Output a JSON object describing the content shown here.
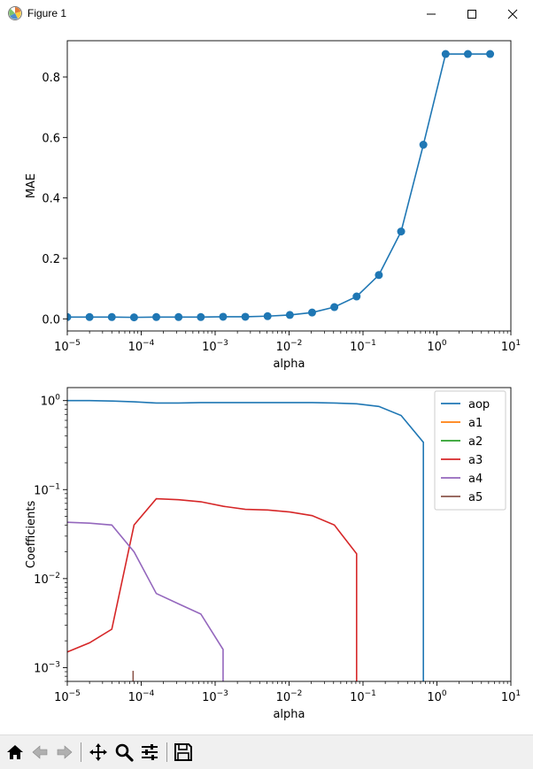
{
  "window": {
    "title": "Figure 1",
    "controls": [
      {
        "name": "minimize-button",
        "icon": "minimize-icon"
      },
      {
        "name": "maximize-button",
        "icon": "maximize-icon"
      },
      {
        "name": "close-button",
        "icon": "close-icon"
      }
    ]
  },
  "toolbar": {
    "tools": [
      {
        "name": "home-button",
        "icon": "home-icon"
      },
      {
        "name": "back-button",
        "icon": "back-arrow-icon"
      },
      {
        "name": "forward-button",
        "icon": "forward-arrow-icon"
      },
      {
        "name": "pan-button",
        "icon": "pan-icon"
      },
      {
        "name": "zoom-button",
        "icon": "zoom-icon"
      },
      {
        "name": "configure-subplots-button",
        "icon": "sliders-icon"
      },
      {
        "name": "save-button",
        "icon": "save-icon"
      }
    ]
  },
  "chart_data": [
    {
      "type": "line",
      "title": "",
      "xlabel": "alpha",
      "ylabel": "MAE",
      "xscale": "log",
      "xlim": [
        1e-05,
        10
      ],
      "ylim": [
        -0.04,
        0.92
      ],
      "x_ticks": [
        1e-05,
        0.0001,
        0.001,
        0.01,
        0.1,
        1,
        10
      ],
      "x_tick_labels": [
        [
          "10",
          "−5"
        ],
        [
          "10",
          "−4"
        ],
        [
          "10",
          "−3"
        ],
        [
          "10",
          "−2"
        ],
        [
          "10",
          "−1"
        ],
        [
          "10",
          "0"
        ],
        [
          "10",
          "1"
        ]
      ],
      "y_ticks": [
        0.0,
        0.2,
        0.4,
        0.6,
        0.8
      ],
      "y_tick_labels": [
        "0.0",
        "0.2",
        "0.4",
        "0.6",
        "0.8"
      ],
      "markers": true,
      "series": [
        {
          "color": "#1f77b4",
          "x": [
            1e-05,
            2e-05,
            4e-05,
            8e-05,
            0.00016,
            0.00032,
            0.00064,
            0.00128,
            0.00256,
            0.00512,
            0.01024,
            0.02048,
            0.04096,
            0.08192,
            0.16384,
            0.32768,
            0.65536,
            1.31072,
            2.62144,
            5.24288
          ],
          "y": [
            0.006,
            0.006,
            0.006,
            0.005,
            0.006,
            0.006,
            0.006,
            0.007,
            0.007,
            0.009,
            0.013,
            0.021,
            0.039,
            0.074,
            0.145,
            0.289,
            0.576,
            0.876,
            0.876,
            0.876
          ]
        }
      ]
    },
    {
      "type": "line",
      "title": "",
      "xlabel": "alpha",
      "ylabel": "Coefficients",
      "xscale": "log",
      "yscale": "log",
      "xlim": [
        1e-05,
        10
      ],
      "ylim": [
        0.0007,
        1.4
      ],
      "x_ticks": [
        1e-05,
        0.0001,
        0.001,
        0.01,
        0.1,
        1,
        10
      ],
      "x_tick_labels": [
        [
          "10",
          "−5"
        ],
        [
          "10",
          "−4"
        ],
        [
          "10",
          "−3"
        ],
        [
          "10",
          "−2"
        ],
        [
          "10",
          "−1"
        ],
        [
          "10",
          "0"
        ],
        [
          "10",
          "1"
        ]
      ],
      "y_ticks": [
        0.001,
        0.01,
        0.1,
        1
      ],
      "y_tick_labels": [
        [
          "10",
          "−3"
        ],
        [
          "10",
          "−2"
        ],
        [
          "10",
          "−1"
        ],
        [
          "10",
          "0"
        ]
      ],
      "legend_position": "upper right",
      "series": [
        {
          "name": "aop",
          "color": "#1f77b4",
          "x": [
            1e-05,
            2e-05,
            4e-05,
            8e-05,
            0.00016,
            0.00032,
            0.00064,
            0.00128,
            0.00256,
            0.00512,
            0.01024,
            0.02048,
            0.04096,
            0.08192,
            0.16384,
            0.32768,
            0.65536,
            0.65536
          ],
          "y": [
            1.0,
            1.0,
            0.99,
            0.97,
            0.94,
            0.94,
            0.95,
            0.95,
            0.95,
            0.95,
            0.95,
            0.95,
            0.94,
            0.92,
            0.86,
            0.68,
            0.34,
            0.0007
          ]
        },
        {
          "name": "a1",
          "color": "#ff7f0e",
          "x": [],
          "y": []
        },
        {
          "name": "a2",
          "color": "#2ca02c",
          "x": [],
          "y": []
        },
        {
          "name": "a3",
          "color": "#d62728",
          "x": [
            1e-05,
            2e-05,
            4e-05,
            8e-05,
            0.00016,
            0.00032,
            0.00064,
            0.00128,
            0.00256,
            0.00512,
            0.01024,
            0.02048,
            0.04096,
            0.08192,
            0.08192
          ],
          "y": [
            0.0015,
            0.0019,
            0.0027,
            0.04,
            0.079,
            0.077,
            0.073,
            0.065,
            0.06,
            0.059,
            0.056,
            0.051,
            0.04,
            0.019,
            0.0007
          ]
        },
        {
          "name": "a4",
          "color": "#9467bd",
          "x": [
            1e-05,
            2e-05,
            4e-05,
            8e-05,
            0.00016,
            0.00032,
            0.00064,
            0.00128,
            0.00128
          ],
          "y": [
            0.043,
            0.042,
            0.04,
            0.02,
            0.0068,
            0.0052,
            0.004,
            0.0016,
            0.0007
          ]
        },
        {
          "name": "a5",
          "color": "#8c564b",
          "x": [
            7.77e-05,
            7.77e-05
          ],
          "y": [
            0.0007,
            0.00092
          ]
        }
      ]
    }
  ]
}
